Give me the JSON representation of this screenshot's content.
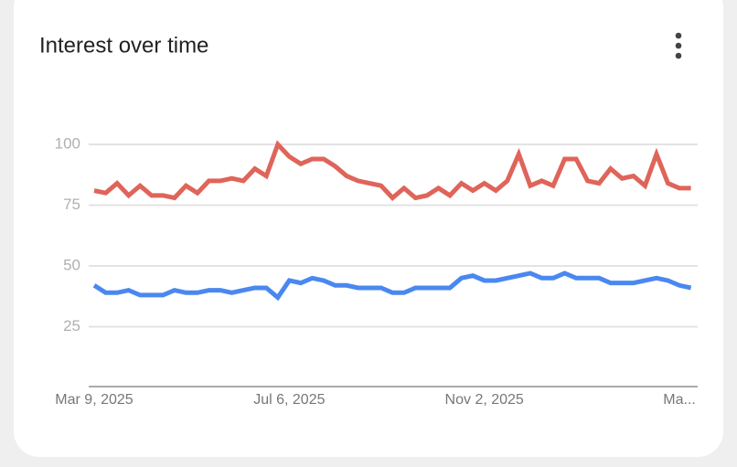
{
  "chart_data": {
    "type": "line",
    "title": "Interest over time",
    "categories": [
      "Mar 9, 2025",
      null,
      null,
      null,
      null,
      null,
      null,
      null,
      null,
      null,
      null,
      null,
      null,
      null,
      null,
      null,
      null,
      "Jul 6, 2025",
      null,
      null,
      null,
      null,
      null,
      null,
      null,
      null,
      null,
      null,
      null,
      null,
      null,
      null,
      null,
      null,
      "Nov 2, 2025",
      null,
      null,
      null,
      null,
      null,
      null,
      null,
      null,
      null,
      null,
      null,
      null,
      null,
      null,
      null,
      null,
      "Ma...",
      null
    ],
    "series": [
      {
        "color": "#df645a",
        "values": [
          81,
          80,
          84,
          79,
          83,
          79,
          79,
          78,
          83,
          80,
          85,
          85,
          86,
          85,
          90,
          87,
          100,
          95,
          92,
          94,
          94,
          91,
          87,
          85,
          84,
          83,
          78,
          82,
          78,
          79,
          82,
          79,
          84,
          81,
          84,
          81,
          85,
          96,
          83,
          85,
          83,
          94,
          94,
          85,
          84,
          90,
          86,
          87,
          83,
          96,
          84,
          82,
          82
        ]
      },
      {
        "color": "#4a88f0",
        "values": [
          42,
          39,
          39,
          40,
          38,
          38,
          38,
          40,
          39,
          39,
          40,
          40,
          39,
          40,
          41,
          41,
          37,
          44,
          43,
          45,
          44,
          42,
          42,
          41,
          41,
          41,
          39,
          39,
          41,
          41,
          41,
          41,
          45,
          46,
          44,
          44,
          45,
          46,
          47,
          45,
          45,
          47,
          45,
          45,
          45,
          43,
          43,
          43,
          44,
          45,
          44,
          42,
          41
        ]
      }
    ],
    "ylim": [
      0,
      100
    ],
    "yticks": [
      25,
      50,
      75,
      100
    ],
    "grid": true
  }
}
